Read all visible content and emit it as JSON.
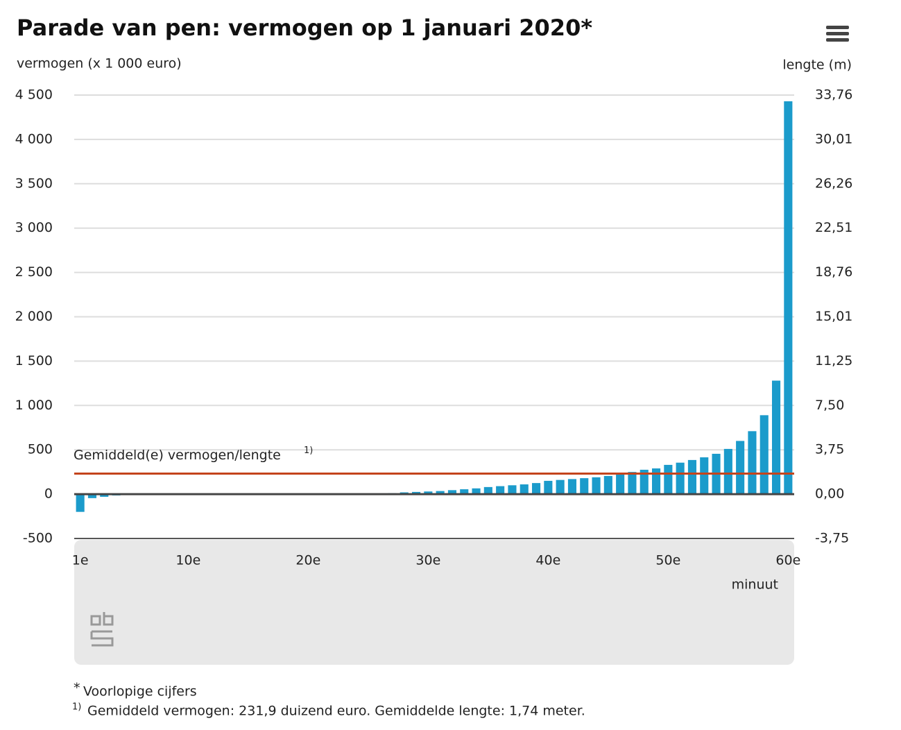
{
  "chart_data": {
    "type": "bar",
    "title": "Parade van pen: vermogen op 1 januari 2020*",
    "y_axis_label": "vermogen (x 1 000 euro)",
    "y2_axis_label": "lengte (m)",
    "x_axis_label": "minuut",
    "categories": [
      "1e",
      null,
      null,
      null,
      null,
      null,
      null,
      null,
      null,
      "10e",
      null,
      null,
      null,
      null,
      null,
      null,
      null,
      null,
      null,
      "20e",
      null,
      null,
      null,
      null,
      null,
      null,
      null,
      null,
      null,
      "30e",
      null,
      null,
      null,
      null,
      null,
      null,
      null,
      null,
      null,
      "40e",
      null,
      null,
      null,
      null,
      null,
      null,
      null,
      null,
      null,
      "50e",
      null,
      null,
      null,
      null,
      null,
      null,
      null,
      null,
      null,
      "60e"
    ],
    "values": [
      -200,
      -45,
      -30,
      -15,
      -10,
      -8,
      -5,
      -3,
      -2,
      -1,
      0,
      0,
      0,
      0,
      0,
      0,
      0,
      0,
      0,
      0,
      0,
      0,
      0,
      0,
      2,
      5,
      10,
      20,
      25,
      30,
      35,
      45,
      55,
      65,
      80,
      90,
      100,
      110,
      125,
      150,
      160,
      170,
      180,
      190,
      205,
      225,
      250,
      275,
      290,
      330,
      355,
      385,
      415,
      455,
      510,
      600,
      710,
      890,
      1280,
      4430
    ],
    "color": "#1b9bcb",
    "ylim": [
      -500,
      4500
    ],
    "yticks": [
      -500,
      0,
      500,
      {
        "value": 1000,
        "label": "1 000"
      },
      {
        "value": 1500,
        "label": "1 500"
      },
      {
        "value": 2000,
        "label": "2 000"
      },
      {
        "value": 2500,
        "label": "2 500"
      },
      {
        "value": 3000,
        "label": "3 000"
      },
      {
        "value": 3500,
        "label": "3 500"
      },
      {
        "value": 4000,
        "label": "4 000"
      },
      {
        "value": 4500,
        "label": "4 500"
      }
    ],
    "y2lim": [
      -3.75,
      33.76
    ],
    "y2ticks": [
      {
        "value": -3.75,
        "label": "-3,75"
      },
      {
        "value": 0,
        "label": "0,00"
      },
      {
        "value": 3.75,
        "label": "3,75"
      },
      {
        "value": 7.5,
        "label": "7,50"
      },
      {
        "value": 11.25,
        "label": "11,25"
      },
      {
        "value": 15.01,
        "label": "15,01"
      },
      {
        "value": 18.76,
        "label": "18,76"
      },
      {
        "value": 22.51,
        "label": "22,51"
      },
      {
        "value": 26.26,
        "label": "26,26"
      },
      {
        "value": 30.01,
        "label": "30,01"
      },
      {
        "value": 33.76,
        "label": "33,76"
      }
    ],
    "grid": true,
    "average": {
      "label": "Gemiddeld(e) vermogen/lengte",
      "mark": "1)",
      "value": 231.9,
      "color": "#c4441c"
    },
    "footnotes": [
      {
        "mark": "*",
        "text": "Voorlopige cijfers"
      },
      {
        "mark": "1)",
        "text": "Gemiddeld vermogen: 231,9 duizend euro. Gemiddelde lengte: 1,74 meter."
      }
    ]
  }
}
